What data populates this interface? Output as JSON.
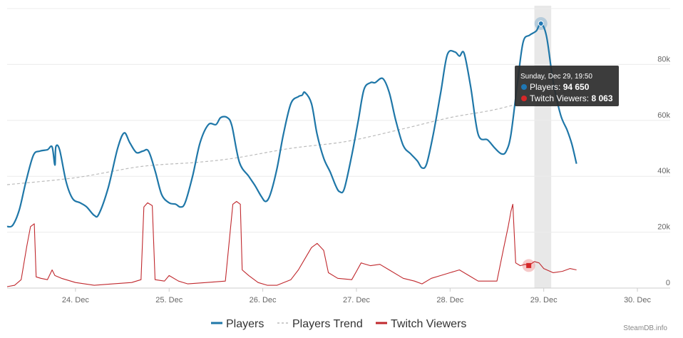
{
  "chart_data": {
    "type": "line",
    "credit": "SteamDB.info",
    "x_unit": "day_of_december",
    "x_ticks": [
      {
        "value": 24,
        "label": "24. Dec"
      },
      {
        "value": 25,
        "label": "25. Dec"
      },
      {
        "value": 26,
        "label": "26. Dec"
      },
      {
        "value": 27,
        "label": "27. Dec"
      },
      {
        "value": 28,
        "label": "28. Dec"
      },
      {
        "value": 29,
        "label": "29. Dec"
      },
      {
        "value": 30,
        "label": "30. Dec"
      }
    ],
    "y_ticks": [
      {
        "value": 0,
        "label": "0"
      },
      {
        "value": 20000,
        "label": "20k"
      },
      {
        "value": 40000,
        "label": "40k"
      },
      {
        "value": 60000,
        "label": "60k"
      },
      {
        "value": 80000,
        "label": "80k"
      }
    ],
    "xlim": [
      23.27,
      30.35
    ],
    "ylim": [
      0,
      100000
    ],
    "grid": true,
    "legend_position": "bottom",
    "series": [
      {
        "name": "Players",
        "color": "#1f77a8",
        "style": "solid",
        "points": [
          [
            23.27,
            22000
          ],
          [
            23.33,
            22500
          ],
          [
            23.4,
            28000
          ],
          [
            23.47,
            38000
          ],
          [
            23.55,
            47500
          ],
          [
            23.62,
            49000
          ],
          [
            23.7,
            49500
          ],
          [
            23.75,
            50500
          ],
          [
            23.78,
            44000
          ],
          [
            23.79,
            50500
          ],
          [
            23.83,
            49500
          ],
          [
            23.9,
            38000
          ],
          [
            23.97,
            32000
          ],
          [
            24.05,
            30500
          ],
          [
            24.12,
            29000
          ],
          [
            24.2,
            26000
          ],
          [
            24.25,
            26500
          ],
          [
            24.35,
            36000
          ],
          [
            24.45,
            50000
          ],
          [
            24.52,
            55500
          ],
          [
            24.58,
            52000
          ],
          [
            24.65,
            48500
          ],
          [
            24.72,
            49000
          ],
          [
            24.78,
            49000
          ],
          [
            24.85,
            42000
          ],
          [
            24.92,
            33500
          ],
          [
            25.0,
            30500
          ],
          [
            25.07,
            30000
          ],
          [
            25.12,
            29000
          ],
          [
            25.17,
            30500
          ],
          [
            25.25,
            40000
          ],
          [
            25.33,
            52000
          ],
          [
            25.42,
            58500
          ],
          [
            25.5,
            58500
          ],
          [
            25.55,
            61000
          ],
          [
            25.62,
            61000
          ],
          [
            25.67,
            58000
          ],
          [
            25.75,
            45000
          ],
          [
            25.85,
            40000
          ],
          [
            25.92,
            36500
          ],
          [
            25.98,
            33000
          ],
          [
            26.03,
            31000
          ],
          [
            26.08,
            33500
          ],
          [
            26.15,
            42500
          ],
          [
            26.22,
            55000
          ],
          [
            26.3,
            66000
          ],
          [
            26.38,
            68500
          ],
          [
            26.42,
            69000
          ],
          [
            26.45,
            70000
          ],
          [
            26.52,
            66000
          ],
          [
            26.58,
            55000
          ],
          [
            26.65,
            46500
          ],
          [
            26.72,
            41500
          ],
          [
            26.78,
            36500
          ],
          [
            26.82,
            34500
          ],
          [
            26.87,
            35500
          ],
          [
            26.95,
            47500
          ],
          [
            27.02,
            60000
          ],
          [
            27.08,
            71000
          ],
          [
            27.15,
            73500
          ],
          [
            27.2,
            73500
          ],
          [
            27.28,
            75000
          ],
          [
            27.35,
            70000
          ],
          [
            27.42,
            60000
          ],
          [
            27.5,
            51000
          ],
          [
            27.58,
            48000
          ],
          [
            27.65,
            45500
          ],
          [
            27.7,
            43000
          ],
          [
            27.75,
            44500
          ],
          [
            27.82,
            55000
          ],
          [
            27.9,
            70000
          ],
          [
            27.97,
            83500
          ],
          [
            28.05,
            84500
          ],
          [
            28.1,
            83000
          ],
          [
            28.15,
            84000
          ],
          [
            28.22,
            72000
          ],
          [
            28.3,
            55000
          ],
          [
            28.4,
            53000
          ],
          [
            28.48,
            50000
          ],
          [
            28.55,
            48000
          ],
          [
            28.6,
            49000
          ],
          [
            28.65,
            55000
          ],
          [
            28.72,
            73500
          ],
          [
            28.78,
            88000
          ],
          [
            28.85,
            90500
          ],
          [
            28.92,
            92000
          ],
          [
            28.97,
            94650
          ],
          [
            29.03,
            90000
          ],
          [
            29.1,
            74000
          ],
          [
            29.18,
            62000
          ],
          [
            29.25,
            56500
          ],
          [
            29.3,
            51500
          ],
          [
            29.35,
            44500
          ]
        ]
      },
      {
        "name": "Players Trend",
        "color": "#bbbbbb",
        "style": "dashed",
        "points": [
          [
            23.27,
            37000
          ],
          [
            24.0,
            39500
          ],
          [
            24.7,
            43500
          ],
          [
            25.3,
            45000
          ],
          [
            25.7,
            46500
          ],
          [
            26.3,
            50000
          ],
          [
            26.9,
            52500
          ],
          [
            27.5,
            57000
          ],
          [
            28.0,
            61000
          ],
          [
            28.5,
            64000
          ],
          [
            29.0,
            68500
          ],
          [
            29.35,
            71000
          ]
        ]
      },
      {
        "name": "Twitch Viewers",
        "color": "#c0282d",
        "style": "solid",
        "points": [
          [
            23.27,
            500
          ],
          [
            23.35,
            1000
          ],
          [
            23.42,
            3000
          ],
          [
            23.48,
            15000
          ],
          [
            23.52,
            22000
          ],
          [
            23.56,
            23000
          ],
          [
            23.58,
            4000
          ],
          [
            23.63,
            3500
          ],
          [
            23.7,
            3000
          ],
          [
            23.75,
            6500
          ],
          [
            23.78,
            4500
          ],
          [
            23.85,
            3500
          ],
          [
            24.0,
            2000
          ],
          [
            24.2,
            1000
          ],
          [
            24.4,
            1500
          ],
          [
            24.6,
            2000
          ],
          [
            24.7,
            3000
          ],
          [
            24.73,
            29000
          ],
          [
            24.77,
            30500
          ],
          [
            24.82,
            29500
          ],
          [
            24.85,
            3000
          ],
          [
            24.95,
            2500
          ],
          [
            25.0,
            4500
          ],
          [
            25.1,
            2500
          ],
          [
            25.2,
            1500
          ],
          [
            25.4,
            2000
          ],
          [
            25.6,
            2500
          ],
          [
            25.68,
            30000
          ],
          [
            25.72,
            31000
          ],
          [
            25.76,
            30000
          ],
          [
            25.78,
            6500
          ],
          [
            25.85,
            4500
          ],
          [
            25.95,
            2000
          ],
          [
            26.05,
            1000
          ],
          [
            26.15,
            1000
          ],
          [
            26.3,
            3000
          ],
          [
            26.38,
            6500
          ],
          [
            26.45,
            10500
          ],
          [
            26.52,
            14500
          ],
          [
            26.58,
            16000
          ],
          [
            26.65,
            13500
          ],
          [
            26.7,
            5500
          ],
          [
            26.8,
            3500
          ],
          [
            26.95,
            3000
          ],
          [
            27.0,
            6000
          ],
          [
            27.05,
            9000
          ],
          [
            27.15,
            8000
          ],
          [
            27.25,
            8500
          ],
          [
            27.35,
            6500
          ],
          [
            27.5,
            3500
          ],
          [
            27.62,
            2500
          ],
          [
            27.7,
            1500
          ],
          [
            27.8,
            3500
          ],
          [
            27.9,
            4500
          ],
          [
            28.0,
            5500
          ],
          [
            28.1,
            6500
          ],
          [
            28.2,
            4500
          ],
          [
            28.3,
            2500
          ],
          [
            28.4,
            2500
          ],
          [
            28.5,
            2500
          ],
          [
            28.57,
            14000
          ],
          [
            28.62,
            22000
          ],
          [
            28.65,
            27500
          ],
          [
            28.67,
            30000
          ],
          [
            28.7,
            9000
          ],
          [
            28.75,
            8000
          ],
          [
            28.8,
            8500
          ],
          [
            28.84,
            8063
          ],
          [
            28.9,
            9500
          ],
          [
            28.95,
            9000
          ],
          [
            29.0,
            7000
          ],
          [
            29.1,
            5500
          ],
          [
            29.2,
            6000
          ],
          [
            29.28,
            7000
          ],
          [
            29.35,
            6500
          ]
        ]
      }
    ],
    "tooltip": {
      "title": "Sunday, Dec 29, 19:50",
      "lines": [
        {
          "label": "Players: ",
          "value": "94 650",
          "color": "#1f77b4"
        },
        {
          "label": "Twitch Viewers: ",
          "value": "8 063",
          "color": "#d62728"
        }
      ],
      "highlight_x": 28.97,
      "highlight_band": [
        28.9,
        29.08
      ],
      "markers": [
        {
          "series": "Players",
          "x": 28.97,
          "y": 94650,
          "color": "#1f77b4"
        },
        {
          "series": "Twitch Viewers",
          "x": 28.84,
          "y": 8063,
          "color": "#d62728"
        }
      ]
    }
  }
}
